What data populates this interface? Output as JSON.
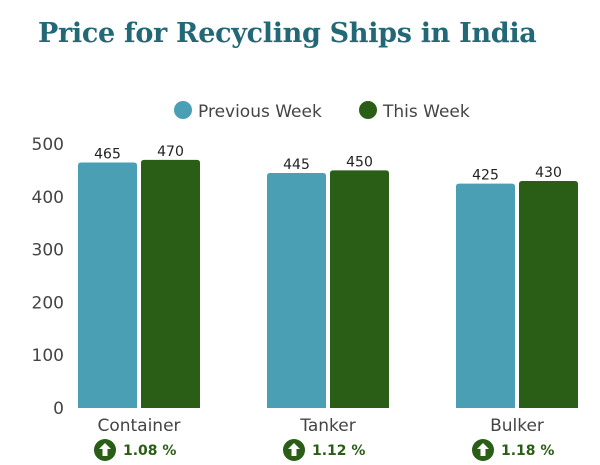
{
  "chart_data": {
    "type": "bar",
    "title": "Price for Recycling Ships in India",
    "categories": [
      "Container",
      "Tanker",
      "Bulker"
    ],
    "series": [
      {
        "name": "Previous Week",
        "values": [
          465,
          445,
          425
        ],
        "color": "#4a9fb5"
      },
      {
        "name": "This Week",
        "values": [
          470,
          450,
          430
        ],
        "color": "#2a5e17"
      }
    ],
    "changes": [
      "1.08 %",
      "1.12 %",
      "1.18 %"
    ],
    "change_icon": "up-arrow-circle-icon",
    "change_color": "#2a5e17",
    "ylim": [
      0,
      500
    ],
    "yticks": [
      0,
      100,
      200,
      300,
      400,
      500
    ],
    "grid": false,
    "legend_position": "top-center",
    "xlabel": "",
    "ylabel": ""
  }
}
